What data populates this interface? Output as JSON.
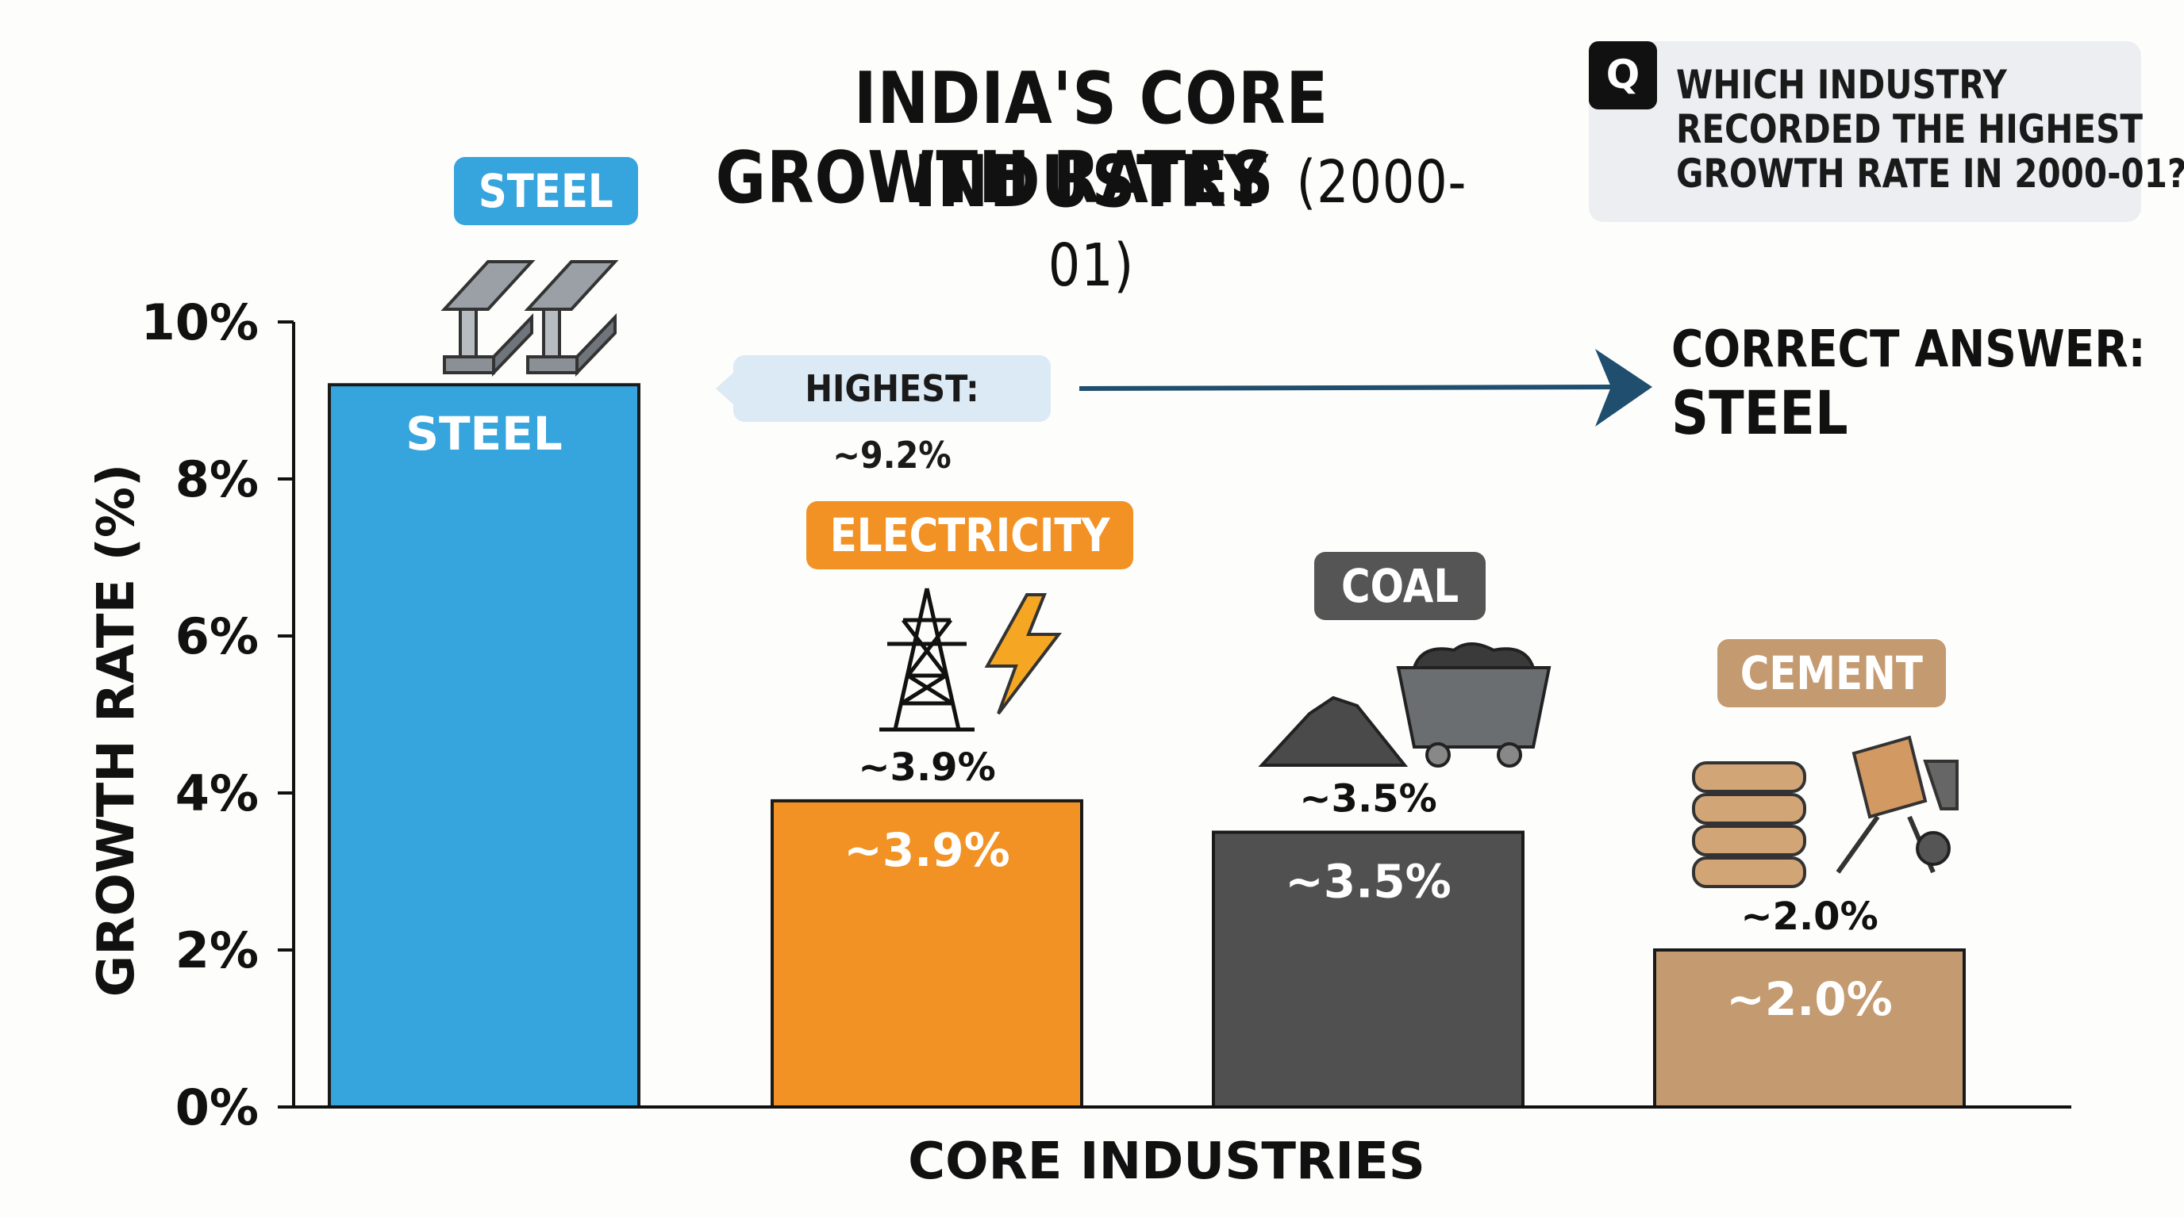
{
  "title": {
    "line1": "INDIA'S CORE INDUSTRY",
    "line2_main": "GROWTH RATES",
    "line2_paren": "(2000-01)"
  },
  "question": {
    "badge": "Q",
    "lines": [
      "WHICH INDUSTRY",
      "RECORDED THE HIGHEST",
      "GROWTH RATE IN 2000-01?"
    ]
  },
  "answer": {
    "label": "CORRECT ANSWER:",
    "value": "STEEL"
  },
  "highlight": {
    "text": "HIGHEST: ~9.2%",
    "color": "#1f4e6e"
  },
  "category_pills": [
    "STEEL",
    "ELECTRICITY",
    "COAL",
    "CEMENT"
  ],
  "icons": [
    "steel-beams-icon",
    "power-tower-icon",
    "lightning-bolt-icon",
    "coal-pile-icon",
    "coal-cart-icon",
    "cement-bags-icon",
    "cement-mixer-icon"
  ],
  "chart_data": {
    "type": "bar",
    "categories": [
      "STEEL",
      "ELECTRICITY",
      "COAL",
      "CEMENT"
    ],
    "values": [
      9.2,
      3.9,
      3.5,
      2.0
    ],
    "data_labels_above": [
      "",
      "~3.9%",
      "~3.5%",
      "~2.0%"
    ],
    "data_labels_inside": [
      "STEEL",
      "~3.9%",
      "~3.5%",
      "~2.0%"
    ],
    "colors": [
      "#36a4dd",
      "#f29225",
      "#505050",
      "#c49a70"
    ],
    "xlabel": "CORE INDUSTRIES",
    "ylabel": "GROWTH RATE (%)",
    "ylim": [
      0,
      10
    ],
    "yticks": [
      0,
      2,
      4,
      6,
      8,
      10
    ],
    "ytick_labels": [
      "0%",
      "2%",
      "4%",
      "6%",
      "8%",
      "10%"
    ],
    "grid": false,
    "legend": "none"
  }
}
